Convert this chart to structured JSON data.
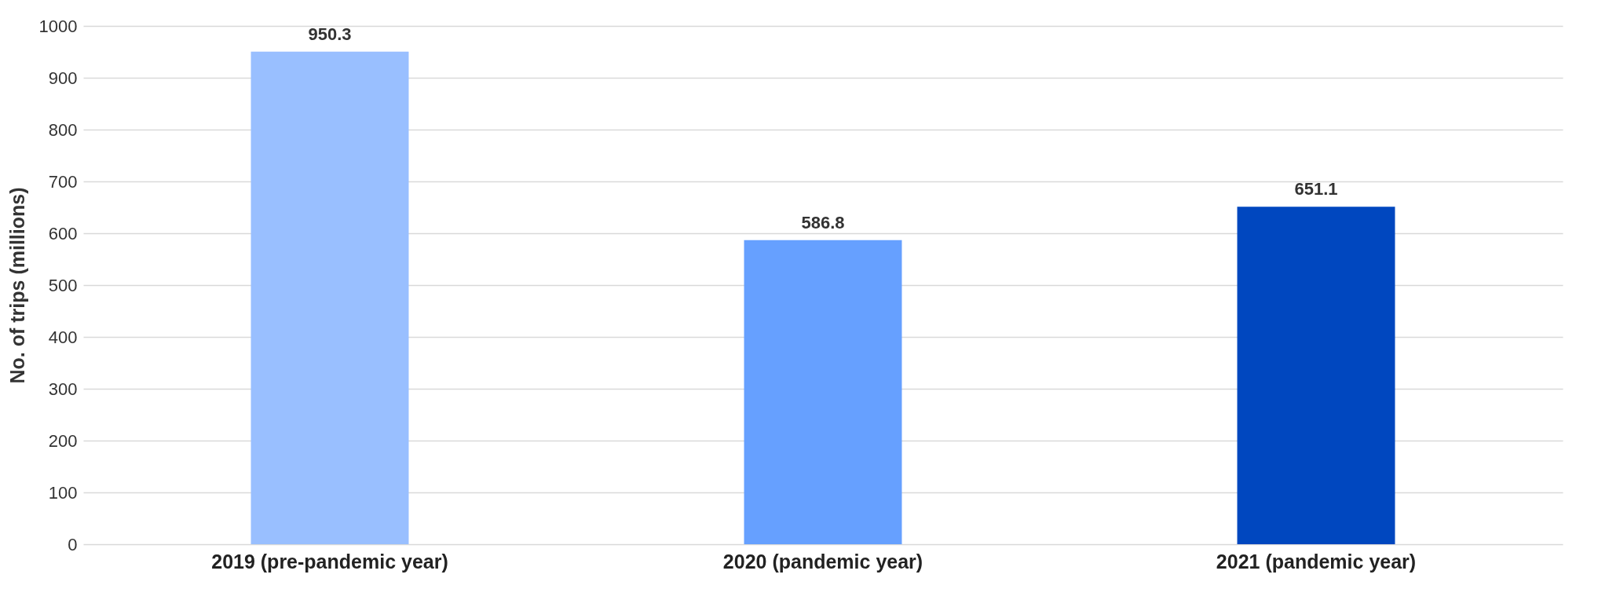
{
  "chart_data": {
    "type": "bar",
    "ylabel": "No. of trips (millions)",
    "categories": [
      "2019 (pre-pandemic year)",
      "2020 (pandemic year)",
      "2021 (pandemic year)"
    ],
    "values": [
      950.3,
      586.8,
      651.1
    ],
    "colors": [
      "#99bfff",
      "#66a0ff",
      "#0047bf"
    ],
    "ylim": [
      0,
      1000
    ],
    "yticks": [
      0,
      100,
      200,
      300,
      400,
      500,
      600,
      700,
      800,
      900,
      1000
    ],
    "grid": "y",
    "data_labels": true
  }
}
